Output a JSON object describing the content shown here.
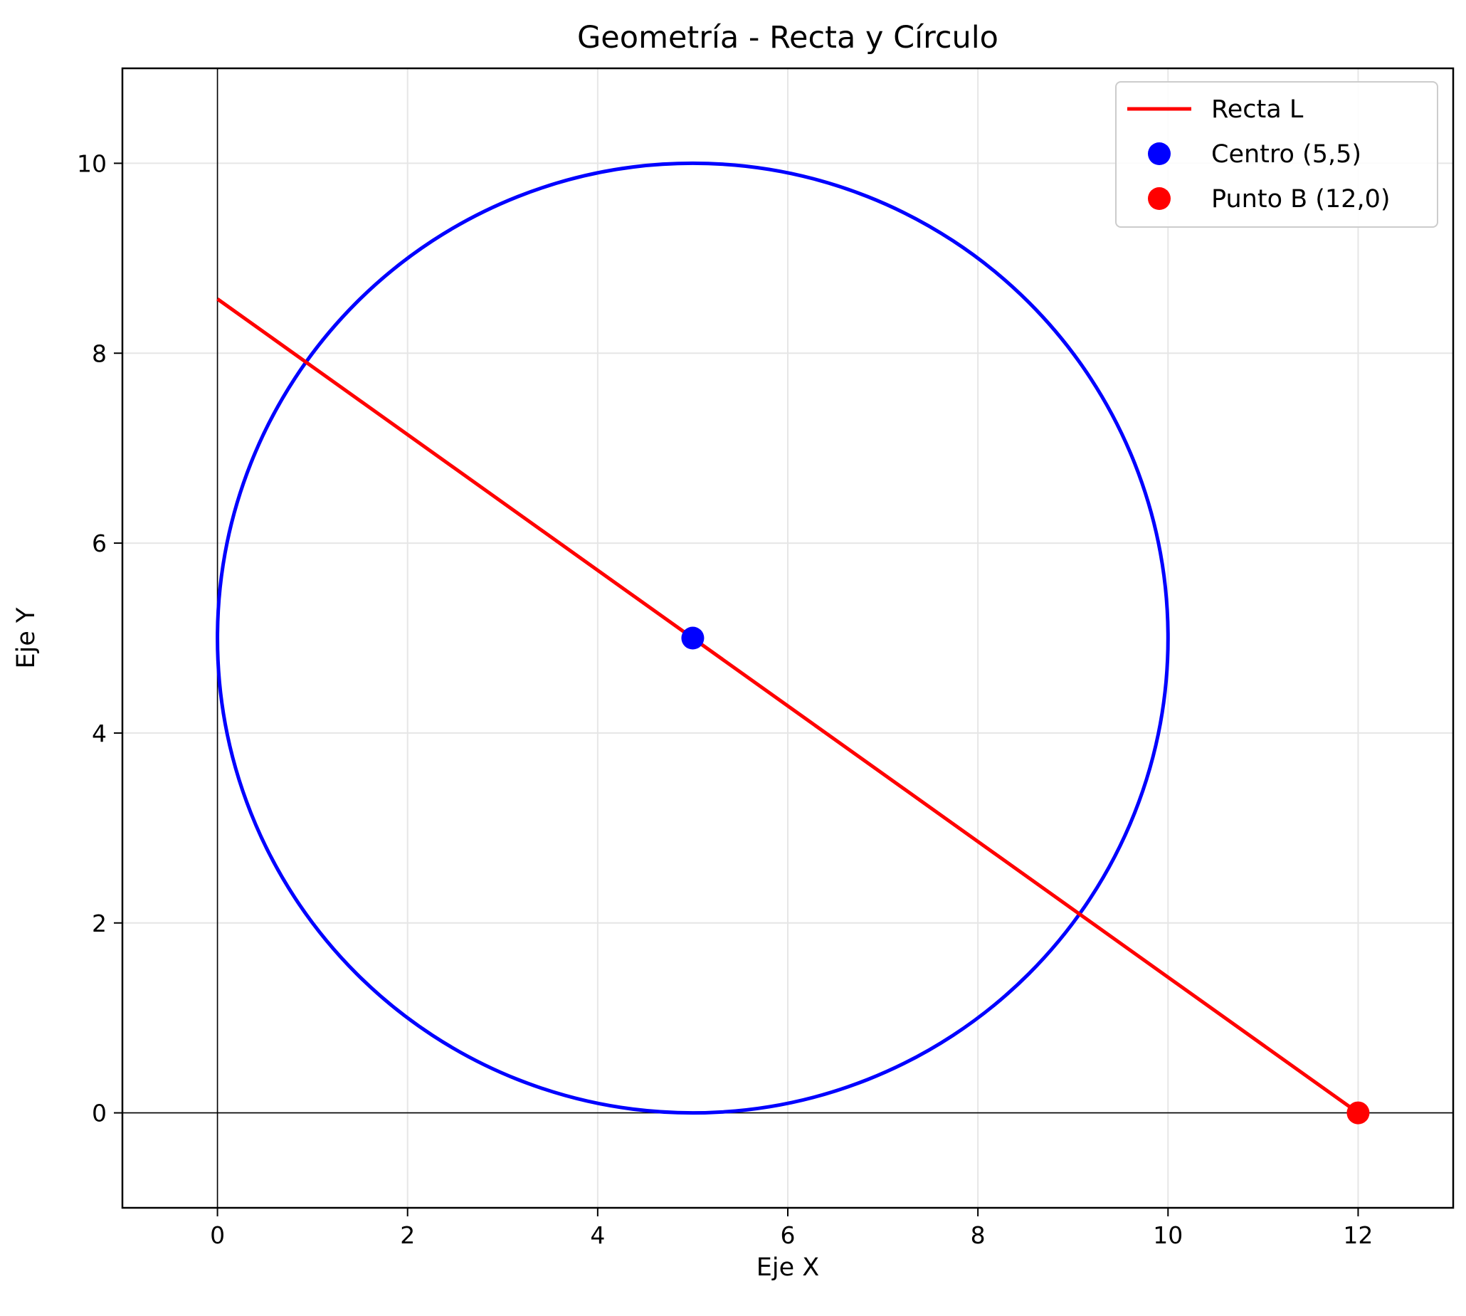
{
  "chart_data": {
    "type": "line",
    "title": "Geometría - Recta y Círculo",
    "xlabel": "Eje X",
    "ylabel": "Eje Y",
    "xlim": [
      -1,
      13
    ],
    "ylim": [
      -1,
      11
    ],
    "xticks": [
      0,
      2,
      4,
      6,
      8,
      10,
      12
    ],
    "yticks": [
      0,
      2,
      4,
      6,
      8,
      10
    ],
    "grid": true,
    "legend_position": "top-right",
    "series": [
      {
        "name": "Recta L",
        "kind": "line",
        "color": "#ff0000",
        "x": [
          0,
          12
        ],
        "y": [
          8.571,
          0
        ]
      },
      {
        "name": "Centro (5,5)",
        "kind": "point",
        "color": "#0000ff",
        "x": [
          5
        ],
        "y": [
          5
        ]
      },
      {
        "name": "Punto B (12,0)",
        "kind": "point",
        "color": "#ff0000",
        "x": [
          12
        ],
        "y": [
          0
        ]
      }
    ],
    "shapes": [
      {
        "kind": "circle",
        "cx": 5,
        "cy": 5,
        "r": 5,
        "color": "#0000ff"
      }
    ]
  }
}
